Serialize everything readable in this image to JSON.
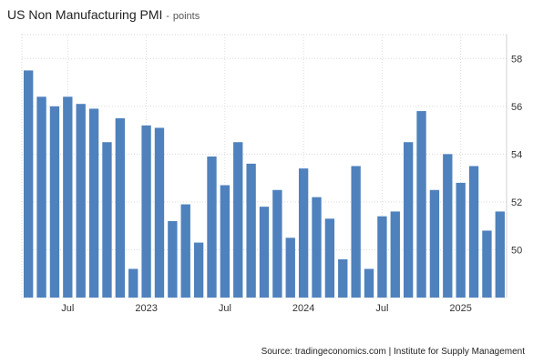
{
  "chart_data": {
    "type": "bar",
    "title": "US Non Manufacturing PMI",
    "unit": "points",
    "x_tick_labels": [
      "Jul",
      "2023",
      "Jul",
      "2024",
      "Jul",
      "2025"
    ],
    "x_tick_positions": [
      3,
      9,
      15,
      21,
      27,
      33
    ],
    "y_tick_labels": [
      "50",
      "52",
      "54",
      "56",
      "58"
    ],
    "ylim": [
      48,
      59
    ],
    "grid": true,
    "y_axis_side": "right",
    "bar_color": "#4f81bd",
    "series": [
      {
        "values": [
          57.5,
          56.4,
          56.0,
          56.4,
          56.1,
          55.9,
          54.5,
          55.5,
          49.2,
          55.2,
          55.1,
          51.2,
          51.9,
          50.3,
          53.9,
          52.7,
          54.5,
          53.6,
          51.8,
          52.5,
          50.5,
          53.4,
          52.2,
          51.3,
          49.6,
          53.5,
          49.2,
          51.4,
          51.6,
          54.5,
          55.8,
          52.5,
          54.0,
          52.8,
          53.5,
          50.8,
          51.6
        ]
      }
    ]
  },
  "source": "Source: tradingeconomics.com | Institute for Supply Management"
}
